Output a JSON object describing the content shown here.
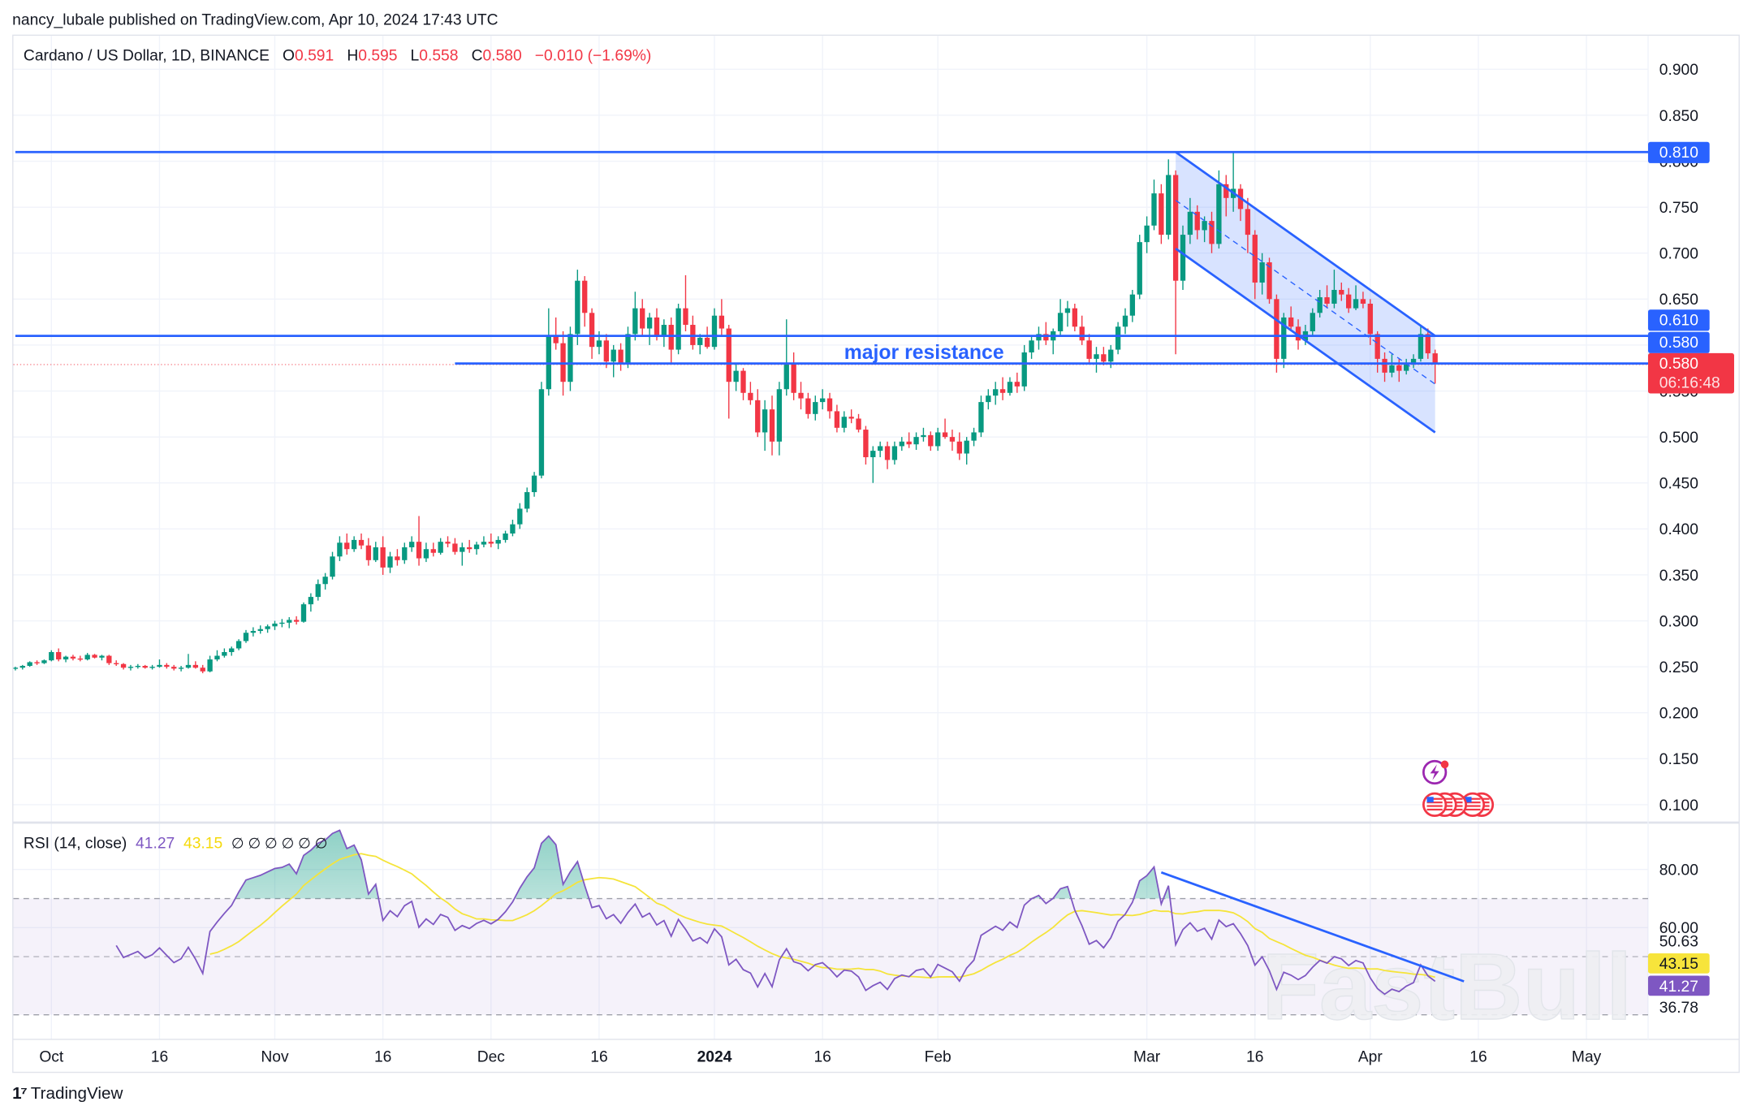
{
  "header": {
    "published": "nancy_lubale published on TradingView.com, Apr 10, 2024 17:43 UTC"
  },
  "legend": {
    "symbol": "Cardano / US Dollar, 1D, BINANCE",
    "o_label": "O",
    "o": "0.591",
    "h_label": "H",
    "h": "0.595",
    "l_label": "L",
    "l": "0.558",
    "c_label": "C",
    "c": "0.580",
    "change": "−0.010 (−1.69%)"
  },
  "rsi_legend": {
    "name": "RSI (14, close)",
    "rsi": "41.27",
    "ma": "43.15",
    "extras": "∅ ∅ ∅ ∅ ∅ ∅"
  },
  "price_tags": {
    "level_high": "0.810",
    "level_mid": "0.610",
    "level_low": "0.580",
    "last_price": "0.580",
    "countdown": "06:16:48"
  },
  "rsi_tags": {
    "ma": "43.15",
    "rsi": "41.27",
    "upper": "50.63",
    "lower": "36.78"
  },
  "annotation": "major resistance",
  "watermark": "FastBull",
  "footer": {
    "brand": "TradingView"
  },
  "colors": {
    "up": "#089981",
    "down": "#f23645",
    "drawing": "#2962ff",
    "rsi": "#7e57c2",
    "rsi_ma": "#f5e43a",
    "band": "#7e57c2"
  },
  "icons": [
    "lightning-event-icon",
    "us-flag-event-icon",
    "us-flag-event-icon",
    "us-flag-event-icon",
    "us-flag-event-icon"
  ],
  "chart_data": {
    "type": "candlestick",
    "start_date": "2023-09-26",
    "interval": "1D",
    "ylim": [
      0.08,
      0.92
    ],
    "yticks": [
      "0.900",
      "0.850",
      "0.800",
      "0.750",
      "0.700",
      "0.650",
      "0.600",
      "0.550",
      "0.500",
      "0.450",
      "0.400",
      "0.350",
      "0.300",
      "0.250",
      "0.200",
      "0.150",
      "0.100"
    ],
    "xticks": [
      [
        "Oct",
        "2023-10-01"
      ],
      [
        "16",
        "2023-10-16"
      ],
      [
        "Nov",
        "2023-11-01"
      ],
      [
        "16",
        "2023-11-16"
      ],
      [
        "Dec",
        "2023-12-01"
      ],
      [
        "16",
        "2023-12-16"
      ],
      [
        "2024",
        "2024-01-01"
      ],
      [
        "16",
        "2024-01-16"
      ],
      [
        "Feb",
        "2024-02-01"
      ],
      [
        "Mar",
        "2024-03-01"
      ],
      [
        "16",
        "2024-03-16"
      ],
      [
        "Apr",
        "2024-04-01"
      ],
      [
        "16",
        "2024-04-16"
      ],
      [
        "May",
        "2024-05-01"
      ]
    ],
    "ohlc": [
      [
        0.248,
        0.25,
        0.246,
        0.249
      ],
      [
        0.249,
        0.252,
        0.247,
        0.251
      ],
      [
        0.251,
        0.256,
        0.25,
        0.255
      ],
      [
        0.255,
        0.257,
        0.252,
        0.254
      ],
      [
        0.254,
        0.258,
        0.253,
        0.257
      ],
      [
        0.257,
        0.268,
        0.256,
        0.266
      ],
      [
        0.266,
        0.27,
        0.256,
        0.258
      ],
      [
        0.258,
        0.262,
        0.255,
        0.261
      ],
      [
        0.261,
        0.263,
        0.257,
        0.259
      ],
      [
        0.259,
        0.262,
        0.256,
        0.258
      ],
      [
        0.258,
        0.265,
        0.257,
        0.263
      ],
      [
        0.263,
        0.264,
        0.259,
        0.26
      ],
      [
        0.26,
        0.263,
        0.257,
        0.262
      ],
      [
        0.262,
        0.263,
        0.252,
        0.254
      ],
      [
        0.254,
        0.257,
        0.251,
        0.253
      ],
      [
        0.253,
        0.254,
        0.247,
        0.249
      ],
      [
        0.249,
        0.252,
        0.246,
        0.25
      ],
      [
        0.25,
        0.253,
        0.248,
        0.251
      ],
      [
        0.251,
        0.252,
        0.248,
        0.249
      ],
      [
        0.249,
        0.252,
        0.247,
        0.25
      ],
      [
        0.25,
        0.258,
        0.249,
        0.252
      ],
      [
        0.252,
        0.254,
        0.248,
        0.25
      ],
      [
        0.25,
        0.252,
        0.246,
        0.248
      ],
      [
        0.248,
        0.251,
        0.245,
        0.249
      ],
      [
        0.249,
        0.264,
        0.248,
        0.252
      ],
      [
        0.252,
        0.256,
        0.248,
        0.249
      ],
      [
        0.249,
        0.252,
        0.243,
        0.245
      ],
      [
        0.245,
        0.262,
        0.244,
        0.258
      ],
      [
        0.258,
        0.268,
        0.256,
        0.262
      ],
      [
        0.262,
        0.27,
        0.26,
        0.266
      ],
      [
        0.266,
        0.272,
        0.262,
        0.27
      ],
      [
        0.27,
        0.28,
        0.268,
        0.278
      ],
      [
        0.278,
        0.29,
        0.276,
        0.287
      ],
      [
        0.287,
        0.293,
        0.283,
        0.289
      ],
      [
        0.289,
        0.295,
        0.286,
        0.291
      ],
      [
        0.291,
        0.296,
        0.287,
        0.294
      ],
      [
        0.294,
        0.3,
        0.29,
        0.297
      ],
      [
        0.297,
        0.302,
        0.293,
        0.298
      ],
      [
        0.298,
        0.304,
        0.292,
        0.301
      ],
      [
        0.301,
        0.305,
        0.296,
        0.299
      ],
      [
        0.299,
        0.32,
        0.298,
        0.318
      ],
      [
        0.318,
        0.33,
        0.31,
        0.326
      ],
      [
        0.326,
        0.345,
        0.322,
        0.34
      ],
      [
        0.34,
        0.352,
        0.334,
        0.348
      ],
      [
        0.348,
        0.375,
        0.345,
        0.37
      ],
      [
        0.37,
        0.392,
        0.365,
        0.385
      ],
      [
        0.385,
        0.395,
        0.372,
        0.378
      ],
      [
        0.378,
        0.392,
        0.375,
        0.388
      ],
      [
        0.388,
        0.395,
        0.378,
        0.382
      ],
      [
        0.382,
        0.39,
        0.36,
        0.366
      ],
      [
        0.366,
        0.386,
        0.364,
        0.38
      ],
      [
        0.38,
        0.392,
        0.35,
        0.358
      ],
      [
        0.358,
        0.375,
        0.352,
        0.37
      ],
      [
        0.37,
        0.378,
        0.36,
        0.366
      ],
      [
        0.366,
        0.385,
        0.362,
        0.38
      ],
      [
        0.38,
        0.392,
        0.375,
        0.386
      ],
      [
        0.386,
        0.414,
        0.36,
        0.368
      ],
      [
        0.368,
        0.385,
        0.364,
        0.378
      ],
      [
        0.378,
        0.385,
        0.37,
        0.374
      ],
      [
        0.374,
        0.39,
        0.372,
        0.386
      ],
      [
        0.386,
        0.392,
        0.38,
        0.384
      ],
      [
        0.384,
        0.39,
        0.372,
        0.375
      ],
      [
        0.375,
        0.385,
        0.36,
        0.38
      ],
      [
        0.38,
        0.388,
        0.374,
        0.378
      ],
      [
        0.378,
        0.386,
        0.372,
        0.383
      ],
      [
        0.383,
        0.392,
        0.38,
        0.386
      ],
      [
        0.386,
        0.395,
        0.38,
        0.384
      ],
      [
        0.384,
        0.392,
        0.378,
        0.388
      ],
      [
        0.388,
        0.398,
        0.385,
        0.395
      ],
      [
        0.395,
        0.41,
        0.392,
        0.405
      ],
      [
        0.405,
        0.428,
        0.4,
        0.422
      ],
      [
        0.422,
        0.445,
        0.418,
        0.44
      ],
      [
        0.44,
        0.462,
        0.435,
        0.458
      ],
      [
        0.458,
        0.56,
        0.455,
        0.552
      ],
      [
        0.552,
        0.64,
        0.545,
        0.61
      ],
      [
        0.61,
        0.63,
        0.595,
        0.602
      ],
      [
        0.602,
        0.615,
        0.545,
        0.56
      ],
      [
        0.56,
        0.62,
        0.55,
        0.612
      ],
      [
        0.612,
        0.682,
        0.6,
        0.67
      ],
      [
        0.67,
        0.675,
        0.62,
        0.635
      ],
      [
        0.635,
        0.64,
        0.585,
        0.598
      ],
      [
        0.598,
        0.615,
        0.59,
        0.605
      ],
      [
        0.605,
        0.612,
        0.575,
        0.582
      ],
      [
        0.582,
        0.6,
        0.565,
        0.595
      ],
      [
        0.595,
        0.602,
        0.572,
        0.58
      ],
      [
        0.58,
        0.62,
        0.575,
        0.612
      ],
      [
        0.612,
        0.658,
        0.605,
        0.64
      ],
      [
        0.64,
        0.65,
        0.61,
        0.618
      ],
      [
        0.618,
        0.635,
        0.6,
        0.63
      ],
      [
        0.63,
        0.64,
        0.605,
        0.61
      ],
      [
        0.61,
        0.628,
        0.598,
        0.622
      ],
      [
        0.622,
        0.63,
        0.58,
        0.595
      ],
      [
        0.595,
        0.645,
        0.59,
        0.64
      ],
      [
        0.64,
        0.676,
        0.615,
        0.622
      ],
      [
        0.622,
        0.632,
        0.595,
        0.6
      ],
      [
        0.6,
        0.612,
        0.59,
        0.608
      ],
      [
        0.608,
        0.62,
        0.596,
        0.598
      ],
      [
        0.598,
        0.64,
        0.595,
        0.632
      ],
      [
        0.632,
        0.65,
        0.61,
        0.618
      ],
      [
        0.618,
        0.622,
        0.52,
        0.56
      ],
      [
        0.56,
        0.58,
        0.55,
        0.572
      ],
      [
        0.572,
        0.575,
        0.54,
        0.548
      ],
      [
        0.548,
        0.56,
        0.535,
        0.54
      ],
      [
        0.54,
        0.552,
        0.5,
        0.505
      ],
      [
        0.505,
        0.54,
        0.485,
        0.53
      ],
      [
        0.53,
        0.545,
        0.48,
        0.495
      ],
      [
        0.495,
        0.56,
        0.48,
        0.552
      ],
      [
        0.552,
        0.628,
        0.545,
        0.58
      ],
      [
        0.58,
        0.592,
        0.54,
        0.548
      ],
      [
        0.548,
        0.56,
        0.53,
        0.542
      ],
      [
        0.542,
        0.548,
        0.52,
        0.525
      ],
      [
        0.525,
        0.545,
        0.518,
        0.538
      ],
      [
        0.538,
        0.552,
        0.53,
        0.542
      ],
      [
        0.542,
        0.548,
        0.52,
        0.528
      ],
      [
        0.528,
        0.535,
        0.505,
        0.51
      ],
      [
        0.51,
        0.528,
        0.505,
        0.522
      ],
      [
        0.522,
        0.53,
        0.515,
        0.52
      ],
      [
        0.52,
        0.525,
        0.505,
        0.508
      ],
      [
        0.508,
        0.512,
        0.47,
        0.478
      ],
      [
        0.478,
        0.49,
        0.45,
        0.485
      ],
      [
        0.485,
        0.495,
        0.478,
        0.49
      ],
      [
        0.49,
        0.495,
        0.465,
        0.475
      ],
      [
        0.475,
        0.495,
        0.47,
        0.49
      ],
      [
        0.49,
        0.5,
        0.485,
        0.495
      ],
      [
        0.495,
        0.505,
        0.488,
        0.492
      ],
      [
        0.492,
        0.505,
        0.486,
        0.5
      ],
      [
        0.5,
        0.51,
        0.495,
        0.502
      ],
      [
        0.502,
        0.506,
        0.485,
        0.49
      ],
      [
        0.49,
        0.51,
        0.485,
        0.505
      ],
      [
        0.505,
        0.52,
        0.498,
        0.5
      ],
      [
        0.5,
        0.508,
        0.485,
        0.495
      ],
      [
        0.495,
        0.505,
        0.475,
        0.482
      ],
      [
        0.482,
        0.5,
        0.47,
        0.496
      ],
      [
        0.496,
        0.51,
        0.49,
        0.505
      ],
      [
        0.505,
        0.545,
        0.5,
        0.538
      ],
      [
        0.538,
        0.552,
        0.53,
        0.545
      ],
      [
        0.545,
        0.56,
        0.535,
        0.552
      ],
      [
        0.552,
        0.565,
        0.54,
        0.548
      ],
      [
        0.548,
        0.565,
        0.545,
        0.56
      ],
      [
        0.56,
        0.57,
        0.548,
        0.555
      ],
      [
        0.555,
        0.6,
        0.55,
        0.592
      ],
      [
        0.592,
        0.61,
        0.585,
        0.605
      ],
      [
        0.605,
        0.62,
        0.595,
        0.612
      ],
      [
        0.612,
        0.625,
        0.6,
        0.605
      ],
      [
        0.605,
        0.618,
        0.59,
        0.615
      ],
      [
        0.615,
        0.65,
        0.61,
        0.635
      ],
      [
        0.635,
        0.648,
        0.62,
        0.64
      ],
      [
        0.64,
        0.645,
        0.615,
        0.62
      ],
      [
        0.62,
        0.632,
        0.6,
        0.605
      ],
      [
        0.605,
        0.612,
        0.58,
        0.585
      ],
      [
        0.585,
        0.598,
        0.57,
        0.59
      ],
      [
        0.59,
        0.598,
        0.578,
        0.582
      ],
      [
        0.582,
        0.6,
        0.575,
        0.595
      ],
      [
        0.595,
        0.625,
        0.59,
        0.62
      ],
      [
        0.62,
        0.64,
        0.612,
        0.632
      ],
      [
        0.632,
        0.66,
        0.625,
        0.655
      ],
      [
        0.655,
        0.72,
        0.65,
        0.712
      ],
      [
        0.712,
        0.74,
        0.7,
        0.73
      ],
      [
        0.73,
        0.78,
        0.725,
        0.765
      ],
      [
        0.765,
        0.775,
        0.71,
        0.72
      ],
      [
        0.72,
        0.802,
        0.715,
        0.785
      ],
      [
        0.785,
        0.79,
        0.59,
        0.67
      ],
      [
        0.67,
        0.73,
        0.66,
        0.72
      ],
      [
        0.72,
        0.76,
        0.71,
        0.745
      ],
      [
        0.745,
        0.752,
        0.715,
        0.725
      ],
      [
        0.725,
        0.74,
        0.712,
        0.735
      ],
      [
        0.735,
        0.745,
        0.7,
        0.71
      ],
      [
        0.71,
        0.79,
        0.705,
        0.775
      ],
      [
        0.775,
        0.785,
        0.74,
        0.76
      ],
      [
        0.76,
        0.81,
        0.745,
        0.77
      ],
      [
        0.77,
        0.775,
        0.735,
        0.748
      ],
      [
        0.748,
        0.76,
        0.7,
        0.72
      ],
      [
        0.72,
        0.725,
        0.65,
        0.668
      ],
      [
        0.668,
        0.7,
        0.655,
        0.69
      ],
      [
        0.69,
        0.695,
        0.645,
        0.65
      ],
      [
        0.65,
        0.655,
        0.57,
        0.585
      ],
      [
        0.585,
        0.635,
        0.575,
        0.63
      ],
      [
        0.63,
        0.642,
        0.615,
        0.62
      ],
      [
        0.62,
        0.628,
        0.595,
        0.605
      ],
      [
        0.605,
        0.622,
        0.6,
        0.615
      ],
      [
        0.615,
        0.64,
        0.61,
        0.635
      ],
      [
        0.635,
        0.66,
        0.63,
        0.652
      ],
      [
        0.652,
        0.665,
        0.64,
        0.645
      ],
      [
        0.645,
        0.682,
        0.64,
        0.66
      ],
      [
        0.66,
        0.668,
        0.648,
        0.655
      ],
      [
        0.655,
        0.662,
        0.635,
        0.64
      ],
      [
        0.64,
        0.665,
        0.638,
        0.65
      ],
      [
        0.65,
        0.658,
        0.64,
        0.645
      ],
      [
        0.645,
        0.65,
        0.6,
        0.612
      ],
      [
        0.612,
        0.615,
        0.57,
        0.585
      ],
      [
        0.585,
        0.592,
        0.56,
        0.57
      ],
      [
        0.57,
        0.59,
        0.565,
        0.578
      ],
      [
        0.578,
        0.585,
        0.56,
        0.572
      ],
      [
        0.572,
        0.585,
        0.568,
        0.58
      ],
      [
        0.58,
        0.59,
        0.575,
        0.585
      ],
      [
        0.585,
        0.62,
        0.582,
        0.612
      ],
      [
        0.612,
        0.618,
        0.585,
        0.591
      ],
      [
        0.591,
        0.595,
        0.558,
        0.58
      ]
    ],
    "levels": [
      {
        "price": 0.81,
        "from": "2023-09-26"
      },
      {
        "price": 0.61,
        "from": "2023-09-26"
      },
      {
        "price": 0.58,
        "from": "2023-11-26"
      }
    ],
    "channel": {
      "start": "2024-03-05",
      "end": "2024-04-10",
      "upper": [
        0.81,
        0.61
      ],
      "lower": [
        0.705,
        0.505
      ]
    },
    "rsi": {
      "period": 14,
      "ma_period": 14,
      "upper_band": 70,
      "lower_band": 30,
      "yticks": [
        "80.00",
        "60.00"
      ],
      "trendline": {
        "start": "2024-03-03",
        "end": "2024-04-14",
        "values": [
          79,
          41.5
        ]
      }
    }
  }
}
